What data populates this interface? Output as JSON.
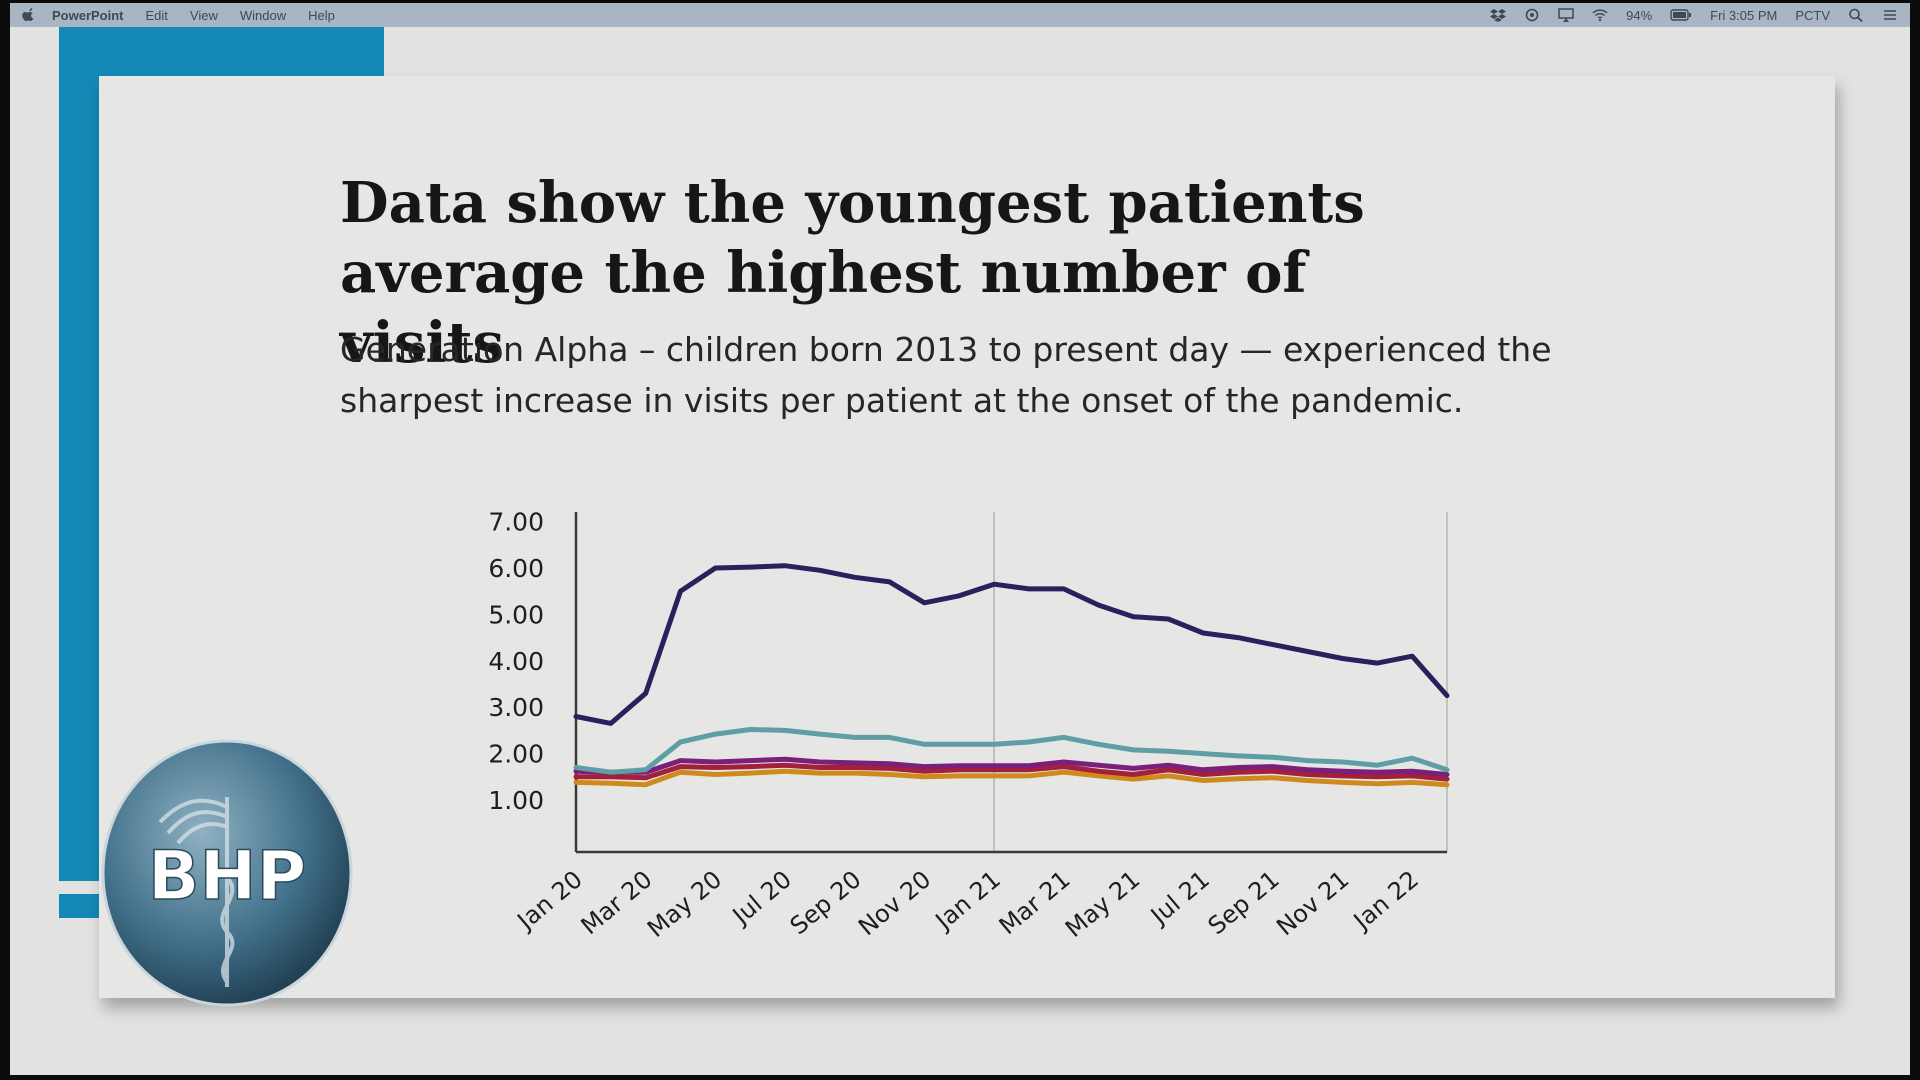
{
  "menubar": {
    "app_name": "PowerPoint",
    "menus": [
      "Edit",
      "View",
      "Window",
      "Help"
    ],
    "status": {
      "battery": "94%",
      "clock": "Fri 3:05 PM",
      "user": "PCTV"
    },
    "icons": [
      "apple-icon",
      "dropbox-icon",
      "sync-icon",
      "airplay-icon",
      "wifi-icon",
      "battery-icon",
      "search-icon",
      "list-icon"
    ]
  },
  "slide": {
    "title_lines": [
      "Data show the youngest patients",
      "average the highest number of visits"
    ],
    "subtitle_lines": [
      "Generation Alpha – children born 2013 to present day — experienced the",
      "sharpest increase in visits per patient at the onset of the pandemic."
    ],
    "logo_text": "BHP"
  },
  "colors": {
    "accent": "#1488b5",
    "menubar": "#a7b6c2",
    "slide_bg": "#e6e6e4"
  },
  "chart_data": {
    "type": "line",
    "title": "",
    "xlabel": "",
    "ylabel": "",
    "ylim": [
      0,
      7
    ],
    "y_ticks": [
      "7.00",
      "6.00",
      "5.00",
      "4.00",
      "3.00",
      "2.00",
      "1.00"
    ],
    "grid": false,
    "reference_lines": [
      {
        "axis": "x",
        "at": "Jan 21"
      }
    ],
    "x": [
      "Jan 20",
      "Feb 20",
      "Mar 20",
      "Apr 20",
      "May 20",
      "Jun 20",
      "Jul 20",
      "Aug 20",
      "Sep 20",
      "Oct 20",
      "Nov 20",
      "Dec 20",
      "Jan 21",
      "Feb 21",
      "Mar 21",
      "Apr 21",
      "May 21",
      "Jun 21",
      "Jul 21",
      "Aug 21",
      "Sep 21",
      "Oct 21",
      "Nov 21",
      "Dec 21",
      "Jan 22",
      "Feb 22"
    ],
    "x_tick_labels": [
      "Jan 20",
      "Mar 20",
      "May 20",
      "Jul 20",
      "Sep 20",
      "Nov 20",
      "Jan 21",
      "Mar 21",
      "May 21",
      "Jul 21",
      "Sep 21",
      "Nov 21",
      "Jan 22"
    ],
    "series": [
      {
        "color": "#2b1f5c",
        "values": [
          2.8,
          2.65,
          3.3,
          5.5,
          6.0,
          6.02,
          6.05,
          5.95,
          5.8,
          5.7,
          5.25,
          5.4,
          5.65,
          5.55,
          5.55,
          5.2,
          4.95,
          4.9,
          4.6,
          4.5,
          4.35,
          4.2,
          4.05,
          3.95,
          4.1,
          3.25
        ]
      },
      {
        "color": "#5e9ea4",
        "values": [
          1.7,
          1.6,
          1.65,
          2.25,
          2.42,
          2.52,
          2.5,
          2.42,
          2.35,
          2.35,
          2.2,
          2.2,
          2.2,
          2.25,
          2.35,
          2.2,
          2.08,
          2.05,
          2.0,
          1.95,
          1.92,
          1.85,
          1.82,
          1.75,
          1.9,
          1.65
        ]
      },
      {
        "color": "#7a1f7a",
        "values": [
          1.62,
          1.6,
          1.6,
          1.85,
          1.82,
          1.85,
          1.88,
          1.82,
          1.8,
          1.78,
          1.72,
          1.74,
          1.74,
          1.74,
          1.82,
          1.75,
          1.68,
          1.75,
          1.65,
          1.7,
          1.72,
          1.65,
          1.62,
          1.6,
          1.62,
          1.55
        ]
      },
      {
        "color": "#a3203a",
        "values": [
          1.5,
          1.5,
          1.48,
          1.72,
          1.7,
          1.72,
          1.75,
          1.7,
          1.7,
          1.68,
          1.62,
          1.65,
          1.65,
          1.65,
          1.72,
          1.62,
          1.55,
          1.65,
          1.55,
          1.6,
          1.62,
          1.55,
          1.52,
          1.5,
          1.52,
          1.45
        ]
      },
      {
        "color": "#cf8a1e",
        "values": [
          1.38,
          1.36,
          1.33,
          1.6,
          1.55,
          1.58,
          1.62,
          1.58,
          1.58,
          1.55,
          1.5,
          1.52,
          1.52,
          1.52,
          1.6,
          1.52,
          1.45,
          1.52,
          1.42,
          1.46,
          1.48,
          1.42,
          1.38,
          1.35,
          1.38,
          1.33
        ]
      }
    ]
  }
}
